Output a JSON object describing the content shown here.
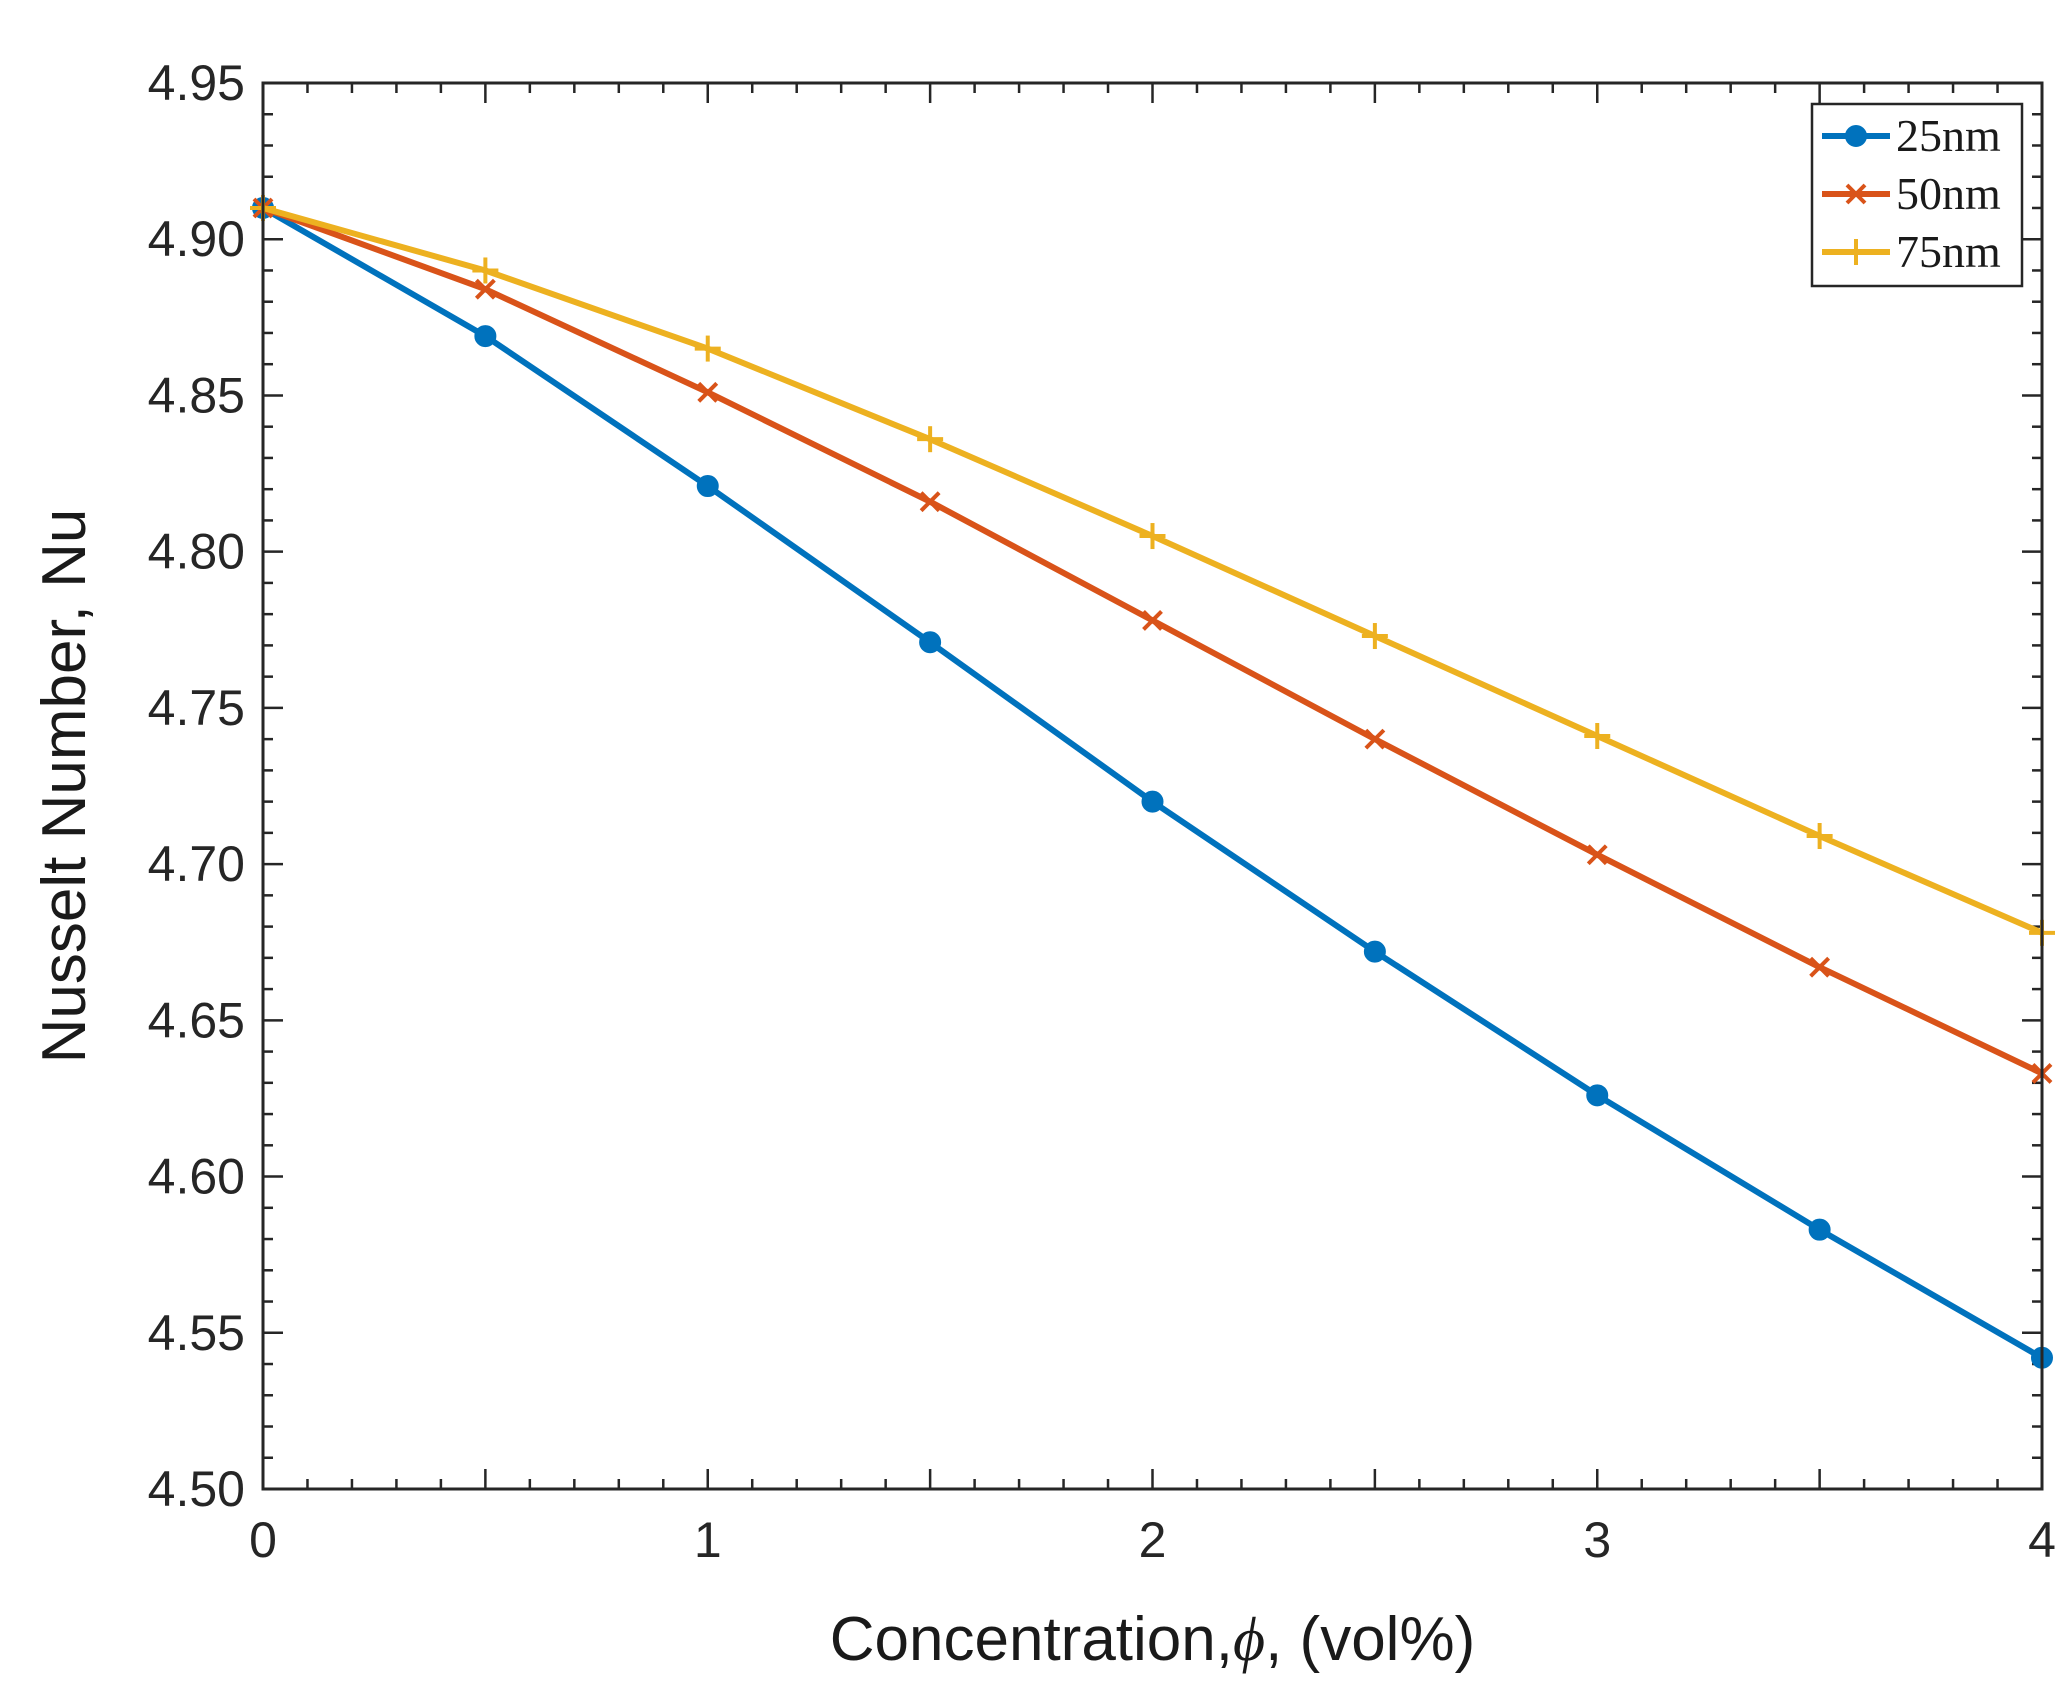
{
  "chart_data": {
    "type": "line",
    "title": "",
    "xlabel_prefix": "Concentration,",
    "xlabel_symbol": "ϕ",
    "xlabel_suffix": ", (vol%)",
    "ylabel": "Nusselt Number, Nu",
    "xlim": [
      0,
      4
    ],
    "ylim": [
      4.5,
      4.95
    ],
    "xticks": [
      0,
      1,
      2,
      3,
      4
    ],
    "xtick_labels": [
      "0",
      "1",
      "2",
      "3",
      "4"
    ],
    "yticks": [
      4.5,
      4.55,
      4.6,
      4.65,
      4.7,
      4.75,
      4.8,
      4.85,
      4.9,
      4.95
    ],
    "ytick_labels": [
      "4.50",
      "4.55",
      "4.60",
      "4.65",
      "4.70",
      "4.75",
      "4.80",
      "4.85",
      "4.90",
      "4.95"
    ],
    "grid": false,
    "legend_position": "top-right",
    "x": [
      0,
      0.5,
      1,
      1.5,
      2,
      2.5,
      3,
      3.5,
      4
    ],
    "series": [
      {
        "name": "25nm",
        "marker": "circle",
        "color": "#0072BD",
        "values": [
          4.91,
          4.869,
          4.821,
          4.771,
          4.72,
          4.672,
          4.626,
          4.583,
          4.542
        ]
      },
      {
        "name": "50nm",
        "marker": "x",
        "color": "#D95319",
        "values": [
          4.91,
          4.884,
          4.851,
          4.816,
          4.778,
          4.74,
          4.703,
          4.667,
          4.633
        ]
      },
      {
        "name": "75nm",
        "marker": "plus",
        "color": "#EDB120",
        "values": [
          4.91,
          4.89,
          4.865,
          4.836,
          4.805,
          4.773,
          4.741,
          4.709,
          4.678
        ]
      }
    ]
  }
}
